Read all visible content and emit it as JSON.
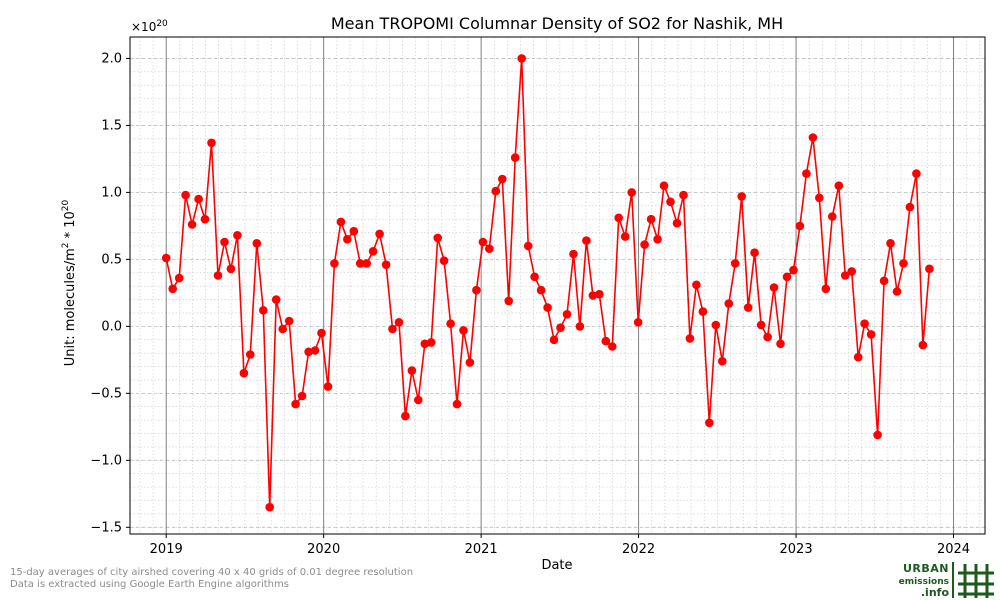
{
  "chart_data": {
    "type": "line",
    "title": "Mean TROPOMI Columnar Density of SO2 for Nashik, MH",
    "xlabel": "Date",
    "ylabel_prefix": "Unit: molecules/m",
    "ylabel_exp1": "2",
    "ylabel_mid": " * 10",
    "ylabel_exp2": "20",
    "offset_base": "×10",
    "offset_exp": "20",
    "ylim": [
      -1.55,
      2.16
    ],
    "xlim": [
      2018.77,
      2024.2
    ],
    "yticks": [
      -1.5,
      -1.0,
      -0.5,
      0.0,
      0.5,
      1.0,
      1.5,
      2.0
    ],
    "ytick_labels": [
      "−1.5",
      "−1.0",
      "−0.5",
      "0.0",
      "0.5",
      "1.0",
      "1.5",
      "2.0"
    ],
    "xticks": [
      2019,
      2020,
      2021,
      2022,
      2023,
      2024
    ],
    "xtick_labels": [
      "2019",
      "2020",
      "2021",
      "2022",
      "2023",
      "2024"
    ],
    "grid": true,
    "line_color": "#ff0000",
    "series": [
      {
        "x": [
          "2019-01-01",
          "2019-01-16",
          "2019-01-31",
          "2019-02-15",
          "2019-03-02",
          "2019-03-17",
          "2019-04-01",
          "2019-04-16",
          "2019-05-01",
          "2019-05-16",
          "2019-05-31",
          "2019-06-15",
          "2019-06-30",
          "2019-07-15",
          "2019-07-30",
          "2019-08-14",
          "2019-08-29",
          "2019-09-13",
          "2019-09-28",
          "2019-10-13",
          "2019-10-28",
          "2019-11-12",
          "2019-11-27",
          "2019-12-12",
          "2019-12-27",
          "2020-01-11",
          "2020-01-26",
          "2020-02-10",
          "2020-02-25",
          "2020-03-11",
          "2020-03-26",
          "2020-04-10",
          "2020-04-25",
          "2020-05-10",
          "2020-05-25",
          "2020-06-09",
          "2020-06-24",
          "2020-07-09",
          "2020-07-24",
          "2020-08-08",
          "2020-08-23",
          "2020-09-07",
          "2020-09-22",
          "2020-10-07",
          "2020-10-22",
          "2020-11-06",
          "2020-11-21",
          "2020-12-06",
          "2020-12-21",
          "2021-01-05",
          "2021-01-20",
          "2021-02-04",
          "2021-02-19",
          "2021-03-06",
          "2021-03-21",
          "2021-04-05",
          "2021-04-20",
          "2021-05-05",
          "2021-05-20",
          "2021-06-04",
          "2021-06-19",
          "2021-07-04",
          "2021-07-19",
          "2021-08-03",
          "2021-08-18",
          "2021-09-02",
          "2021-09-17",
          "2021-10-02",
          "2021-10-17",
          "2021-11-01",
          "2021-11-16",
          "2021-12-01",
          "2021-12-16",
          "2021-12-31",
          "2022-01-15",
          "2022-01-30",
          "2022-02-14",
          "2022-03-01",
          "2022-03-16",
          "2022-03-31",
          "2022-04-15",
          "2022-04-30",
          "2022-05-15",
          "2022-05-30",
          "2022-06-14",
          "2022-06-29",
          "2022-07-14",
          "2022-07-29",
          "2022-08-13",
          "2022-08-28",
          "2022-09-12",
          "2022-09-27",
          "2022-10-12",
          "2022-10-27",
          "2022-11-11",
          "2022-11-26",
          "2022-12-11",
          "2022-12-26",
          "2023-01-10",
          "2023-01-25",
          "2023-02-09",
          "2023-02-24",
          "2023-03-11",
          "2023-03-26",
          "2023-04-10",
          "2023-04-25",
          "2023-05-10",
          "2023-05-25",
          "2023-06-09",
          "2023-06-24",
          "2023-07-09",
          "2023-07-24",
          "2023-08-08",
          "2023-08-23",
          "2023-09-07",
          "2023-09-22",
          "2023-10-07",
          "2023-10-22",
          "2023-11-06"
        ],
        "y": [
          0.51,
          0.28,
          0.36,
          0.98,
          0.76,
          0.95,
          0.8,
          1.37,
          0.38,
          0.63,
          0.43,
          0.68,
          -0.35,
          -0.21,
          0.62,
          0.12,
          -1.35,
          0.2,
          -0.02,
          0.04,
          -0.58,
          -0.52,
          -0.19,
          -0.18,
          -0.05,
          -0.45,
          0.47,
          0.78,
          0.65,
          0.71,
          0.47,
          0.47,
          0.56,
          0.69,
          0.46,
          -0.02,
          0.03,
          -0.67,
          -0.33,
          -0.55,
          -0.13,
          -0.12,
          0.66,
          0.49,
          0.02,
          -0.58,
          -0.03,
          -0.27,
          0.27,
          0.63,
          0.58,
          1.01,
          1.1,
          0.19,
          1.26,
          2.0,
          0.6,
          0.37,
          0.27,
          0.14,
          -0.1,
          -0.01,
          0.09,
          0.54,
          0.0,
          0.64,
          0.23,
          0.24,
          -0.11,
          -0.15,
          0.81,
          0.67,
          1.0,
          0.03,
          0.61,
          0.8,
          0.65,
          1.05,
          0.93,
          0.77,
          0.98,
          -0.09,
          0.31,
          0.11,
          -0.72,
          0.01,
          -0.26,
          0.17,
          0.47,
          0.97,
          0.14,
          0.55,
          0.01,
          -0.08,
          0.29,
          -0.13,
          0.37,
          0.42,
          0.75,
          1.14,
          1.41,
          0.96,
          0.28,
          0.82,
          1.05,
          0.38,
          0.41,
          -0.23,
          0.02,
          -0.06,
          -0.81,
          0.34,
          0.62,
          0.26,
          0.47,
          0.89,
          1.14,
          -0.14,
          0.43
        ]
      }
    ]
  },
  "footnotes": [
    "15-day averages of city airshed covering 40 x 40 grids of 0.01 degree resolution",
    "Data is extracted using Google Earth Engine algorithms"
  ],
  "logo": {
    "line1": "URBAN",
    "line2": "emissions",
    "line3": ".info",
    "color": "#1e5a1e"
  }
}
